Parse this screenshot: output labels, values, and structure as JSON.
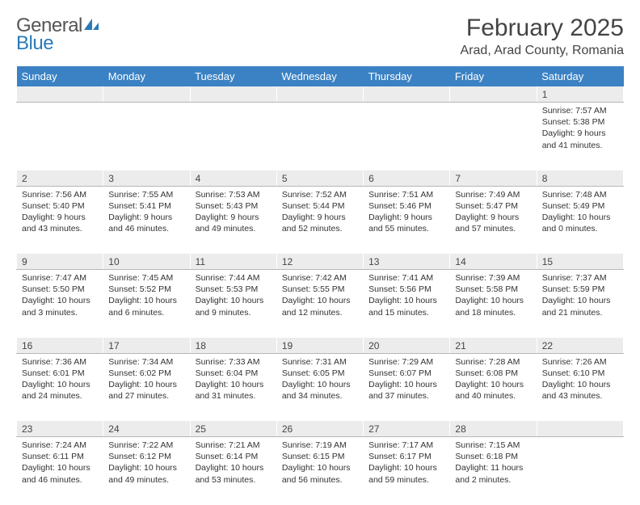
{
  "logo": {
    "word1": "General",
    "word2": "Blue"
  },
  "title": "February 2025",
  "location": "Arad, Arad County, Romania",
  "colors": {
    "header_bg": "#3b82c4",
    "header_fg": "#ffffff",
    "daynum_bg": "#ececec",
    "border": "#b8b8b8",
    "logo_blue": "#2a7ab8"
  },
  "weekdays": [
    "Sunday",
    "Monday",
    "Tuesday",
    "Wednesday",
    "Thursday",
    "Friday",
    "Saturday"
  ],
  "weeks": [
    {
      "nums": [
        "",
        "",
        "",
        "",
        "",
        "",
        "1"
      ],
      "cells": [
        "",
        "",
        "",
        "",
        "",
        "",
        "Sunrise: 7:57 AM\nSunset: 5:38 PM\nDaylight: 9 hours and 41 minutes."
      ]
    },
    {
      "nums": [
        "2",
        "3",
        "4",
        "5",
        "6",
        "7",
        "8"
      ],
      "cells": [
        "Sunrise: 7:56 AM\nSunset: 5:40 PM\nDaylight: 9 hours and 43 minutes.",
        "Sunrise: 7:55 AM\nSunset: 5:41 PM\nDaylight: 9 hours and 46 minutes.",
        "Sunrise: 7:53 AM\nSunset: 5:43 PM\nDaylight: 9 hours and 49 minutes.",
        "Sunrise: 7:52 AM\nSunset: 5:44 PM\nDaylight: 9 hours and 52 minutes.",
        "Sunrise: 7:51 AM\nSunset: 5:46 PM\nDaylight: 9 hours and 55 minutes.",
        "Sunrise: 7:49 AM\nSunset: 5:47 PM\nDaylight: 9 hours and 57 minutes.",
        "Sunrise: 7:48 AM\nSunset: 5:49 PM\nDaylight: 10 hours and 0 minutes."
      ]
    },
    {
      "nums": [
        "9",
        "10",
        "11",
        "12",
        "13",
        "14",
        "15"
      ],
      "cells": [
        "Sunrise: 7:47 AM\nSunset: 5:50 PM\nDaylight: 10 hours and 3 minutes.",
        "Sunrise: 7:45 AM\nSunset: 5:52 PM\nDaylight: 10 hours and 6 minutes.",
        "Sunrise: 7:44 AM\nSunset: 5:53 PM\nDaylight: 10 hours and 9 minutes.",
        "Sunrise: 7:42 AM\nSunset: 5:55 PM\nDaylight: 10 hours and 12 minutes.",
        "Sunrise: 7:41 AM\nSunset: 5:56 PM\nDaylight: 10 hours and 15 minutes.",
        "Sunrise: 7:39 AM\nSunset: 5:58 PM\nDaylight: 10 hours and 18 minutes.",
        "Sunrise: 7:37 AM\nSunset: 5:59 PM\nDaylight: 10 hours and 21 minutes."
      ]
    },
    {
      "nums": [
        "16",
        "17",
        "18",
        "19",
        "20",
        "21",
        "22"
      ],
      "cells": [
        "Sunrise: 7:36 AM\nSunset: 6:01 PM\nDaylight: 10 hours and 24 minutes.",
        "Sunrise: 7:34 AM\nSunset: 6:02 PM\nDaylight: 10 hours and 27 minutes.",
        "Sunrise: 7:33 AM\nSunset: 6:04 PM\nDaylight: 10 hours and 31 minutes.",
        "Sunrise: 7:31 AM\nSunset: 6:05 PM\nDaylight: 10 hours and 34 minutes.",
        "Sunrise: 7:29 AM\nSunset: 6:07 PM\nDaylight: 10 hours and 37 minutes.",
        "Sunrise: 7:28 AM\nSunset: 6:08 PM\nDaylight: 10 hours and 40 minutes.",
        "Sunrise: 7:26 AM\nSunset: 6:10 PM\nDaylight: 10 hours and 43 minutes."
      ]
    },
    {
      "nums": [
        "23",
        "24",
        "25",
        "26",
        "27",
        "28",
        ""
      ],
      "cells": [
        "Sunrise: 7:24 AM\nSunset: 6:11 PM\nDaylight: 10 hours and 46 minutes.",
        "Sunrise: 7:22 AM\nSunset: 6:12 PM\nDaylight: 10 hours and 49 minutes.",
        "Sunrise: 7:21 AM\nSunset: 6:14 PM\nDaylight: 10 hours and 53 minutes.",
        "Sunrise: 7:19 AM\nSunset: 6:15 PM\nDaylight: 10 hours and 56 minutes.",
        "Sunrise: 7:17 AM\nSunset: 6:17 PM\nDaylight: 10 hours and 59 minutes.",
        "Sunrise: 7:15 AM\nSunset: 6:18 PM\nDaylight: 11 hours and 2 minutes.",
        ""
      ]
    }
  ]
}
